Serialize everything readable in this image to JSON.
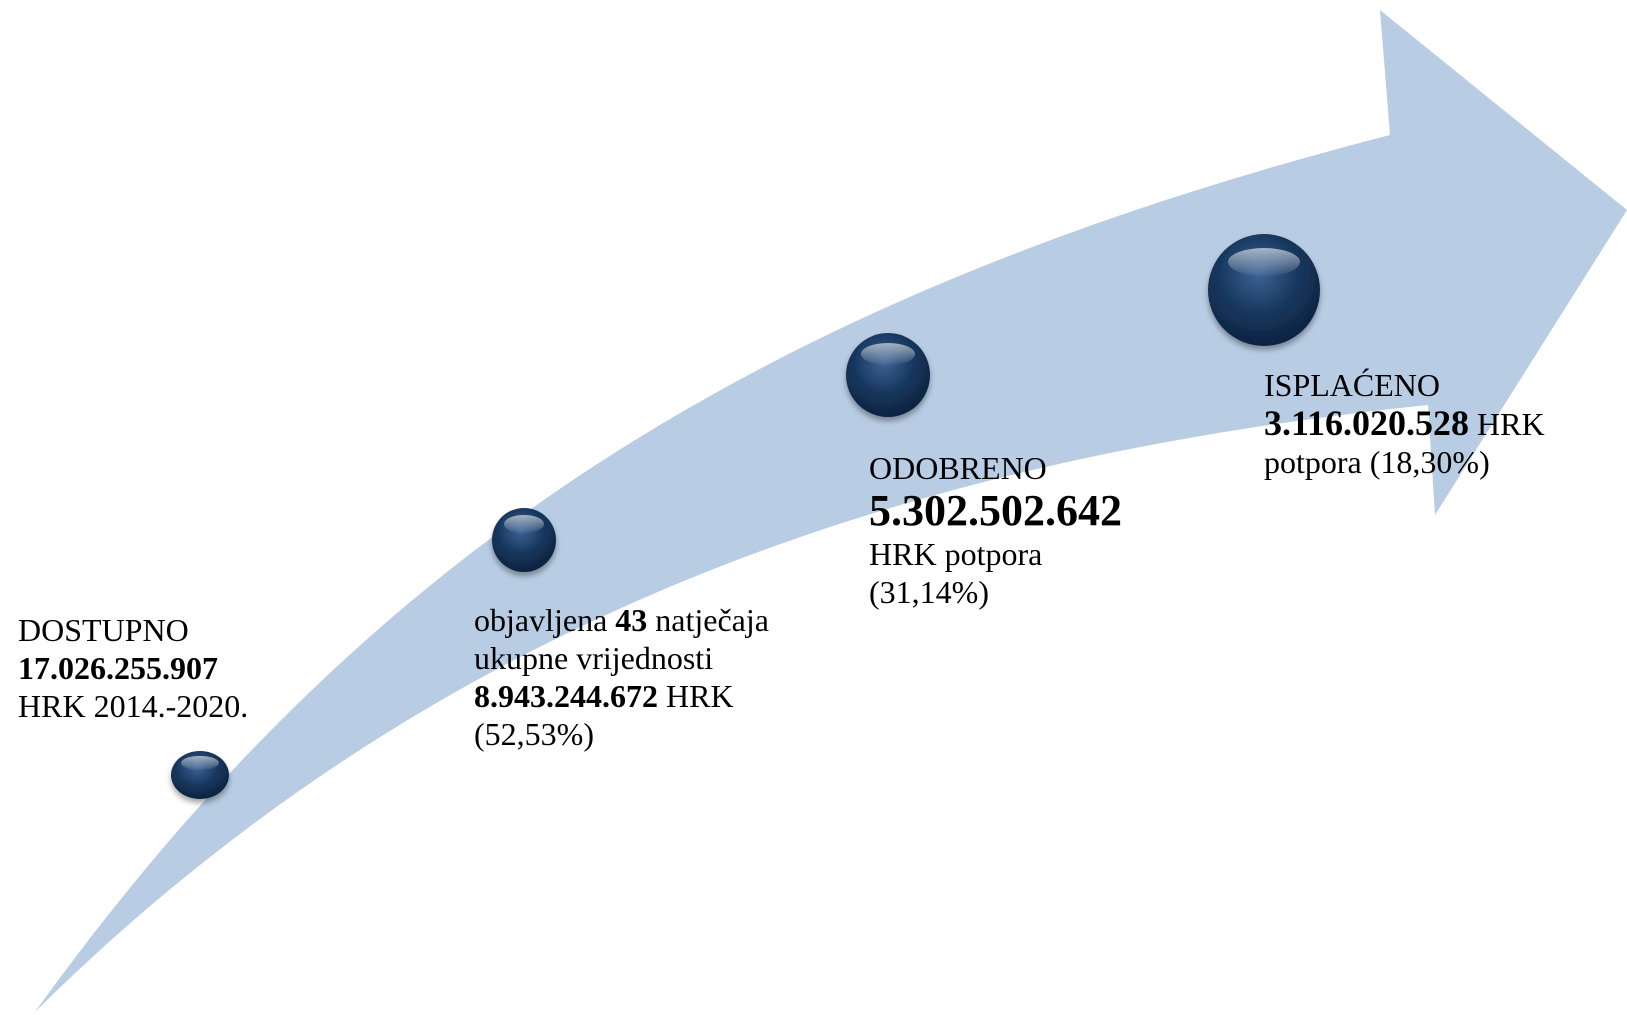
{
  "colors": {
    "arrow": "#b8cce4",
    "milestone": "#17375e",
    "text": "#000000"
  },
  "stages": [
    {
      "label": "DOSTUPNO",
      "value": "17.026.255.907",
      "detail": "HRK 2014.-2020."
    },
    {
      "prefix": "objavljena",
      "count": "43",
      "count_suffix": "natječaja",
      "line2": "ukupne vrijednosti",
      "value": "8.943.244.672",
      "value_suffix": "HRK",
      "percent": "(52,53%)"
    },
    {
      "label": "ODOBRENO",
      "value": "5.302.502.642",
      "detail": "HRK potpora",
      "percent": "(31,14%)"
    },
    {
      "label": "ISPLAĆENO",
      "value": "3.116.020.528",
      "value_suffix": "HRK",
      "detail": "potpora (18,30%)"
    }
  ]
}
